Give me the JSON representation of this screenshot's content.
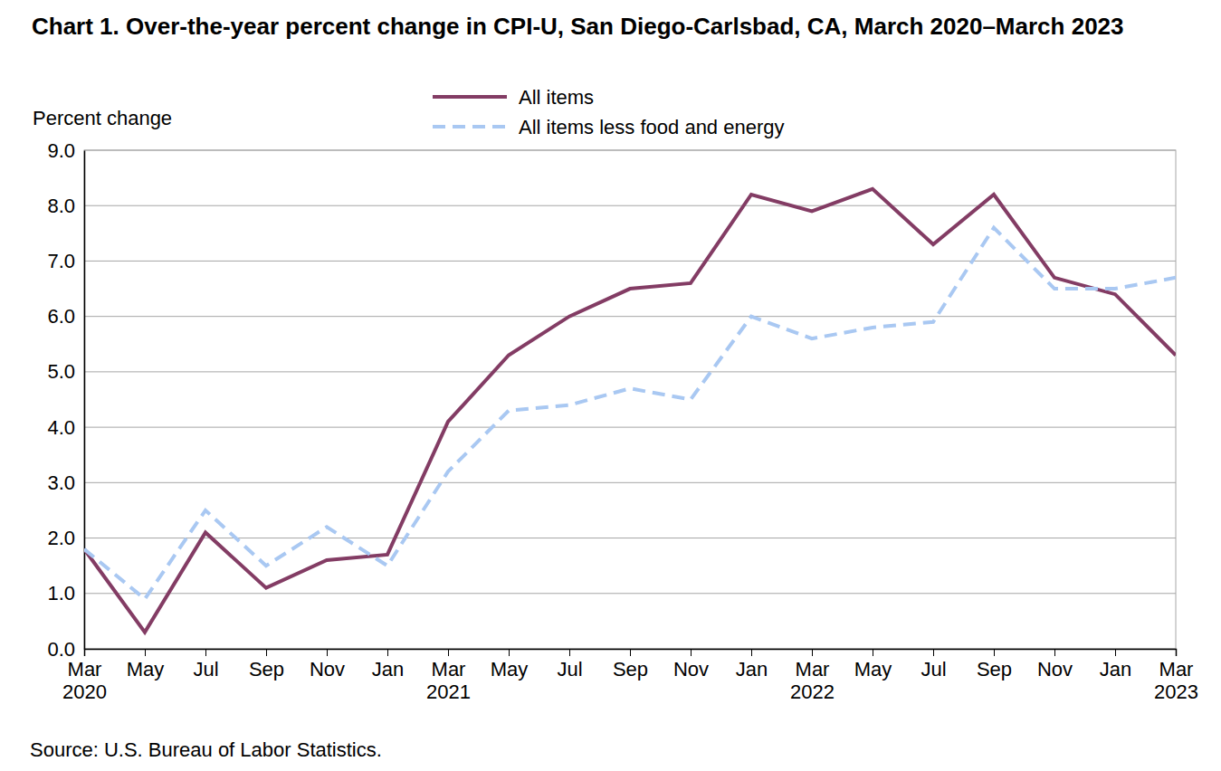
{
  "chart_data": {
    "type": "line",
    "title": "Chart 1. Over-the-year percent change in CPI-U, San Diego-Carlsbad, CA, March 2020–March 2023",
    "y_label": "Percent change",
    "source": "Source: U.S. Bureau of Labor Statistics.",
    "categories": [
      "Mar 2020",
      "May",
      "Jul",
      "Sep",
      "Nov",
      "Jan",
      "Mar 2021",
      "May",
      "Jul",
      "Sep",
      "Nov",
      "Jan",
      "Mar 2022",
      "May",
      "Jul",
      "Sep",
      "Nov",
      "Jan",
      "Mar 2023"
    ],
    "series": [
      {
        "name": "All items",
        "color": "#833c64",
        "line_style": "solid",
        "values": [
          1.8,
          0.3,
          2.1,
          1.1,
          1.6,
          1.7,
          4.1,
          5.3,
          6.0,
          6.5,
          6.6,
          8.2,
          7.9,
          8.3,
          7.3,
          8.2,
          6.7,
          6.4,
          5.3
        ]
      },
      {
        "name": "All items less food and energy",
        "color": "#a9c8f2",
        "line_style": "dashed",
        "values": [
          1.8,
          0.9,
          2.5,
          1.5,
          2.2,
          1.5,
          3.2,
          4.3,
          4.4,
          4.7,
          4.5,
          6.0,
          5.6,
          5.8,
          5.9,
          7.6,
          6.5,
          6.5,
          6.7
        ]
      }
    ],
    "ylim": [
      0,
      9
    ],
    "yticks": [
      {
        "value": 0,
        "label": "0.0"
      },
      {
        "value": 1,
        "label": "1.0"
      },
      {
        "value": 2,
        "label": "2.0"
      },
      {
        "value": 3,
        "label": "3.0"
      },
      {
        "value": 4,
        "label": "4.0"
      },
      {
        "value": 5,
        "label": "5.0"
      },
      {
        "value": 6,
        "label": "6.0"
      },
      {
        "value": 7,
        "label": "7.0"
      },
      {
        "value": 8,
        "label": "8.0"
      },
      {
        "value": 9,
        "label": "9.0"
      }
    ],
    "grid": true,
    "legend": "top"
  }
}
